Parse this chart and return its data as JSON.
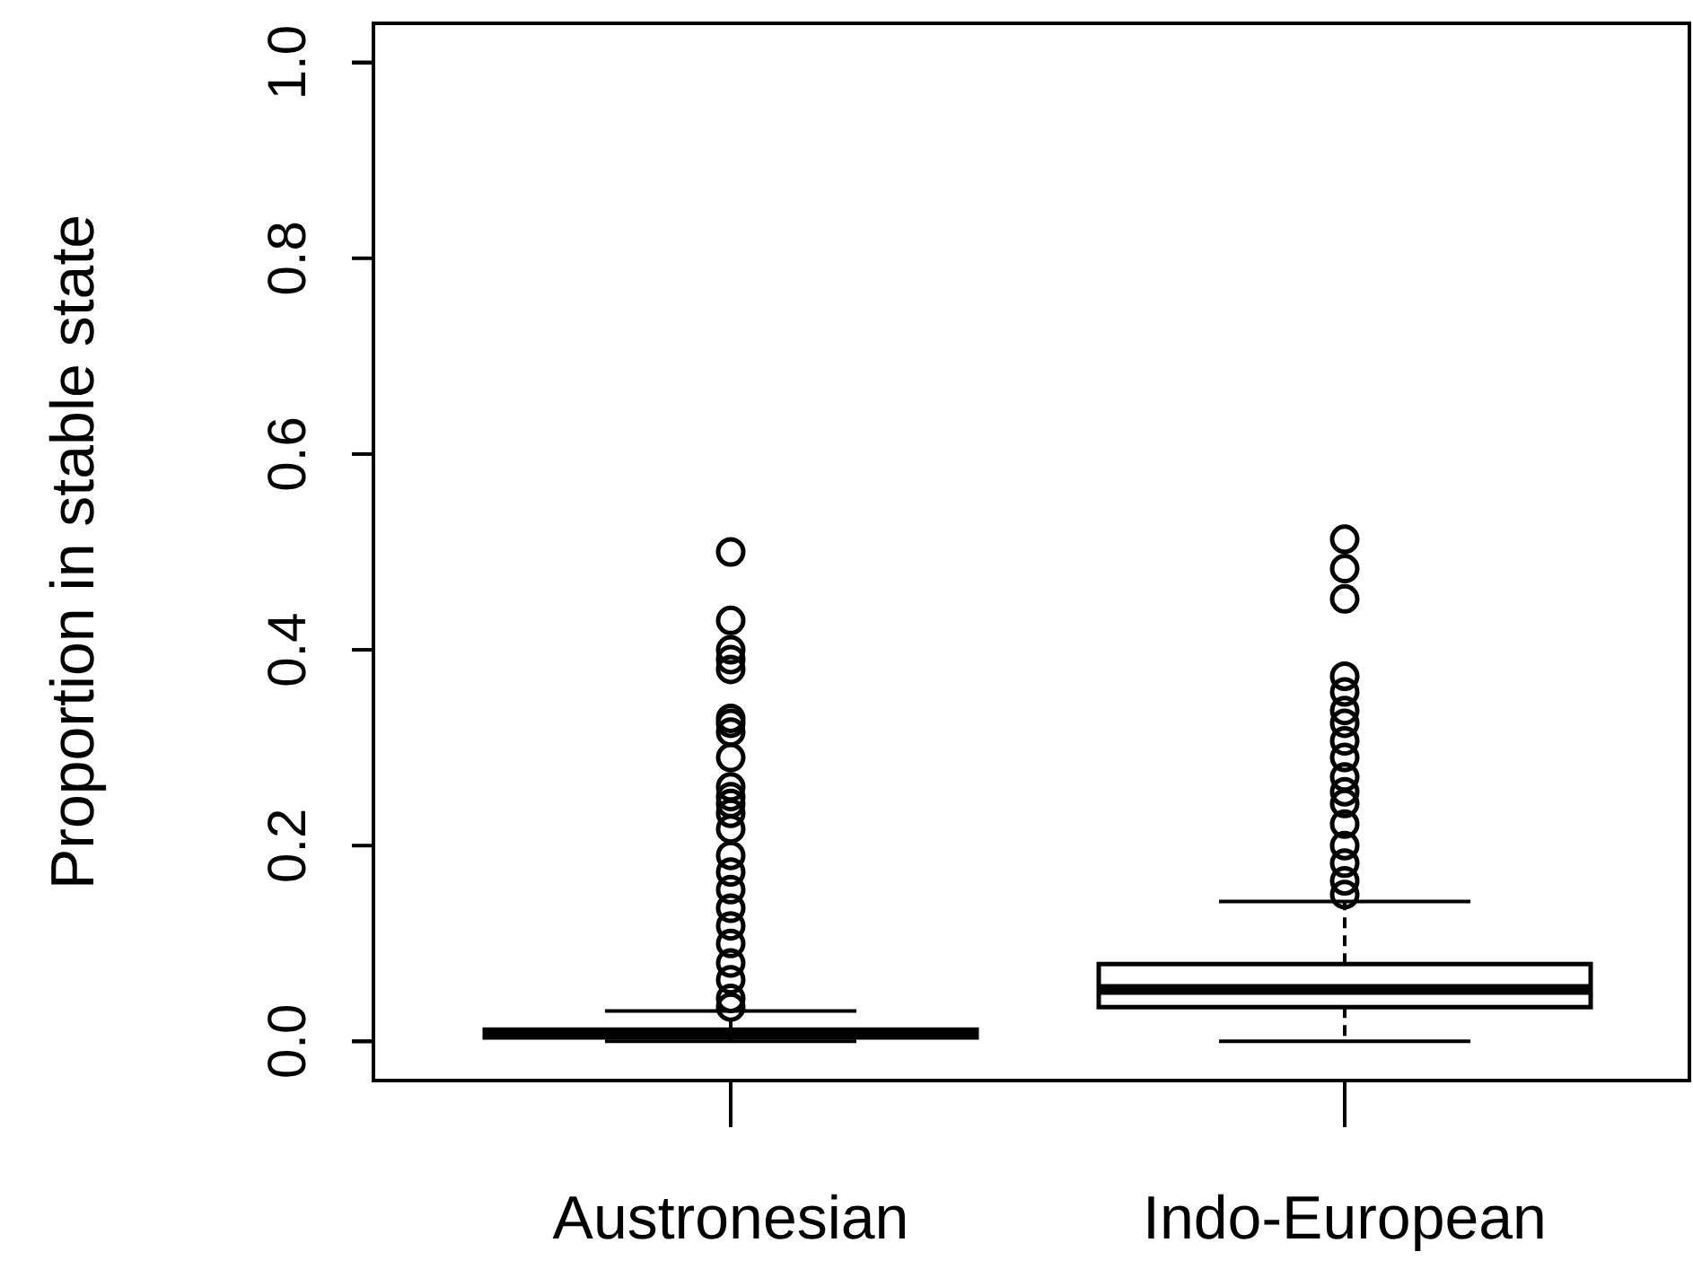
{
  "chart_data": {
    "type": "box",
    "ylabel": "Proportion in stable state",
    "categories": [
      "Austronesian",
      "Indo-European"
    ],
    "ylim": [
      -0.04,
      1.04
    ],
    "yticks": [
      {
        "value": 0,
        "label": "0.0"
      },
      {
        "value": 0.2,
        "label": "0.2"
      },
      {
        "value": 0.4,
        "label": "0.4"
      },
      {
        "value": 0.6,
        "label": "0.6"
      },
      {
        "value": 0.8,
        "label": "0.8"
      },
      {
        "value": 1,
        "label": "1.0"
      }
    ],
    "boxes": [
      {
        "low": 0,
        "q1": 0.004,
        "median": 0.008,
        "q3": 0.012,
        "high": 0.031,
        "outliers": [
          0.5,
          0.43,
          0.4,
          0.39,
          0.38,
          0.33,
          0.325,
          0.316,
          0.29,
          0.26,
          0.25,
          0.243,
          0.233,
          0.217,
          0.19,
          0.173,
          0.155,
          0.136,
          0.118,
          0.1,
          0.08,
          0.063,
          0.044,
          0.035
        ]
      },
      {
        "low": 0,
        "q1": 0.035,
        "median": 0.053,
        "q3": 0.079,
        "high": 0.143,
        "outliers": [
          0.513,
          0.483,
          0.452,
          0.373,
          0.357,
          0.338,
          0.325,
          0.307,
          0.29,
          0.27,
          0.255,
          0.243,
          0.222,
          0.2,
          0.182,
          0.164,
          0.15
        ]
      }
    ]
  }
}
